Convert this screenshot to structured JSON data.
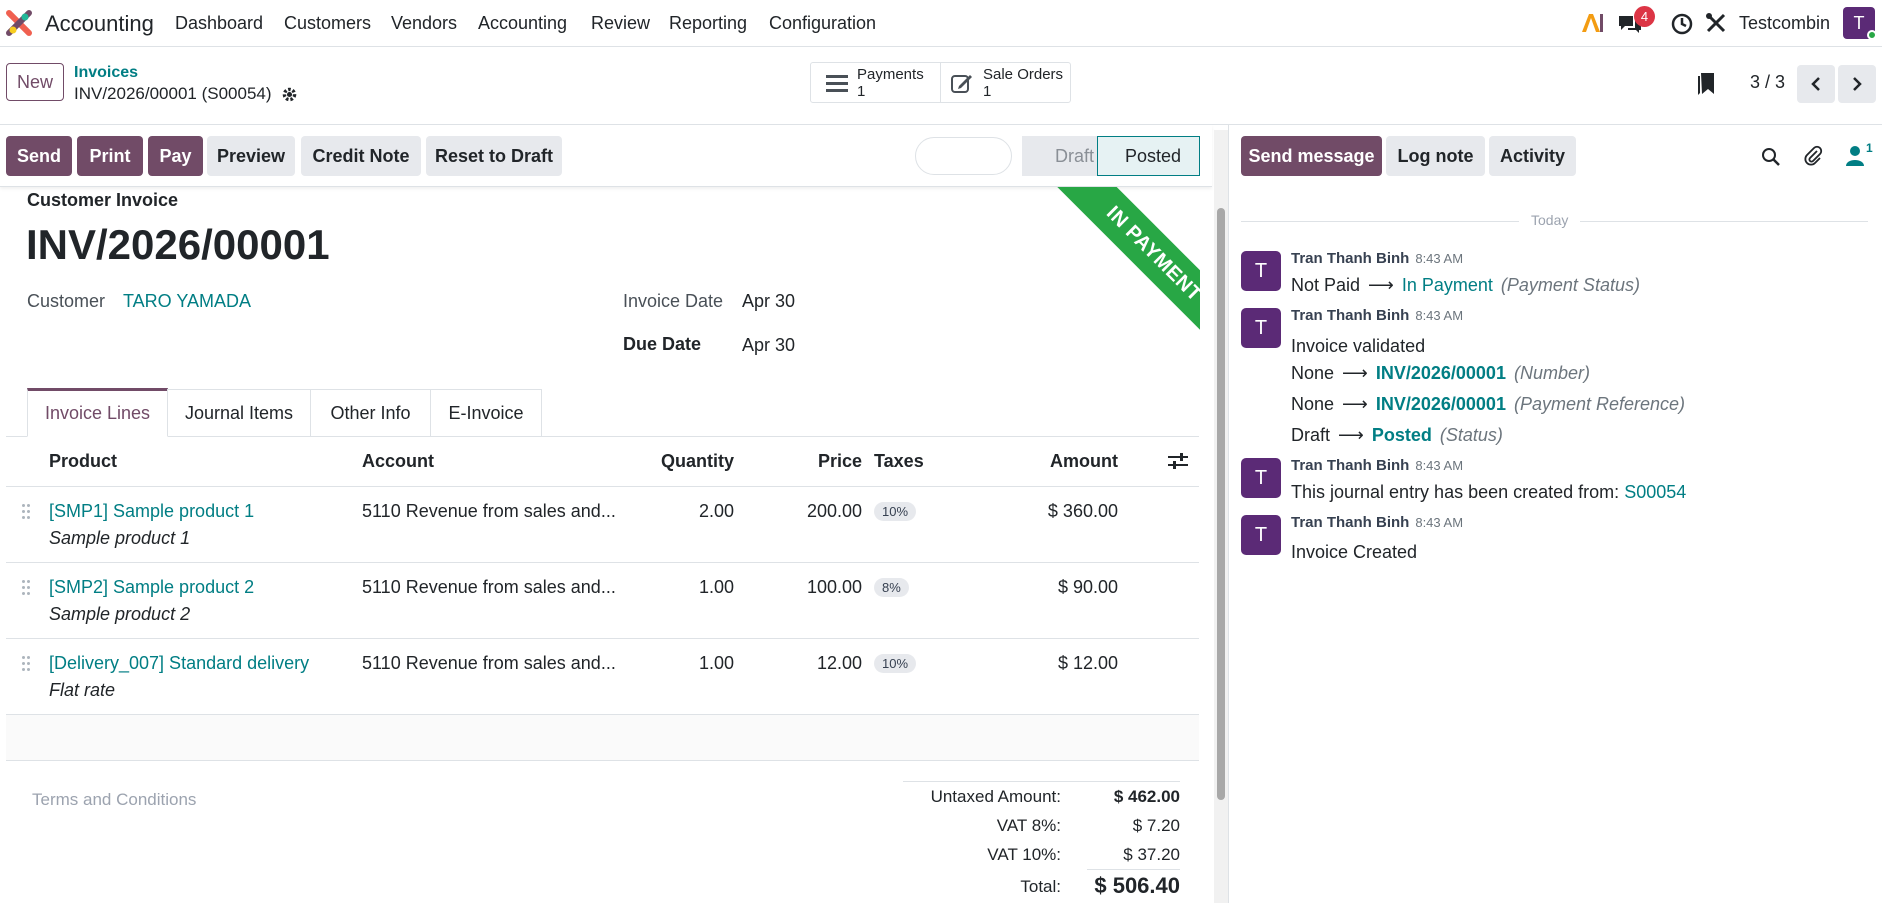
{
  "navbar": {
    "app_name": "Accounting",
    "menu": [
      "Dashboard",
      "Customers",
      "Vendors",
      "Accounting",
      "Review",
      "Reporting",
      "Configuration"
    ],
    "messages_count": "4",
    "user_name": "Testcombin",
    "user_initial": "T",
    "icons": [
      "app-logo-icon",
      "ai-icon",
      "chat-icon",
      "clock-icon",
      "tools-icon"
    ]
  },
  "control": {
    "new_label": "New",
    "breadcrumb_parent": "Invoices",
    "record_name": "INV/2026/00001 (S00054)",
    "smart_buttons": [
      {
        "label": "Payments",
        "count": "1"
      },
      {
        "label": "Sale Orders",
        "count": "1"
      }
    ],
    "pager": "3 / 3"
  },
  "actions": {
    "send": "Send",
    "print": "Print",
    "pay": "Pay",
    "preview": "Preview",
    "credit_note": "Credit Note",
    "reset_to_draft": "Reset to Draft",
    "status_draft": "Draft",
    "status_posted": "Posted"
  },
  "invoice": {
    "type_label": "Customer Invoice",
    "number": "INV/2026/00001",
    "ribbon": "IN PAYMENT",
    "customer_label": "Customer",
    "customer_value": "TARO YAMADA",
    "invoice_date_label": "Invoice Date",
    "invoice_date_value": "Apr 30",
    "due_date_label": "Due Date",
    "due_date_value": "Apr 30"
  },
  "tabs": [
    "Invoice Lines",
    "Journal Items",
    "Other Info",
    "E-Invoice"
  ],
  "table": {
    "headers": {
      "product": "Product",
      "account": "Account",
      "quantity": "Quantity",
      "price": "Price",
      "taxes": "Taxes",
      "amount": "Amount"
    },
    "rows": [
      {
        "product": "[SMP1] Sample product 1",
        "desc": "Sample product 1",
        "account": "5110 Revenue from sales and...",
        "quantity": "2.00",
        "price": "200.00",
        "tax": "10%",
        "amount": "$ 360.00"
      },
      {
        "product": "[SMP2] Sample product 2",
        "desc": "Sample product 2",
        "account": "5110 Revenue from sales and...",
        "quantity": "1.00",
        "price": "100.00",
        "tax": "8%",
        "amount": "$ 90.00"
      },
      {
        "product": "[Delivery_007] Standard delivery",
        "desc": "Flat rate",
        "account": "5110 Revenue from sales and...",
        "quantity": "1.00",
        "price": "12.00",
        "tax": "10%",
        "amount": "$ 12.00"
      }
    ]
  },
  "totals": {
    "terms_placeholder": "Terms and Conditions",
    "untaxed_label": "Untaxed Amount:",
    "untaxed_value": "$ 462.00",
    "vat8_label": "VAT 8%:",
    "vat8_value": "$ 7.20",
    "vat10_label": "VAT 10%:",
    "vat10_value": "$ 37.20",
    "total_label": "Total:",
    "total_value": "$ 506.40"
  },
  "chatter": {
    "send_message": "Send message",
    "log_note": "Log note",
    "activity": "Activity",
    "followers_count": "1",
    "date_separator": "Today",
    "messages": [
      {
        "author": "Tran Thanh Binh",
        "time": "8:43 AM",
        "initial": "T"
      },
      {
        "author": "Tran Thanh Binh",
        "time": "8:43 AM",
        "initial": "T"
      },
      {
        "author": "Tran Thanh Binh",
        "time": "8:43 AM",
        "initial": "T"
      },
      {
        "author": "Tran Thanh Binh",
        "time": "8:43 AM",
        "initial": "T"
      }
    ],
    "m1": {
      "from": "Not Paid",
      "arrow": "⟶",
      "to": "In Payment",
      "field": "(Payment Status)"
    },
    "m2": {
      "title": "Invoice validated",
      "lines": [
        {
          "from": "None",
          "arrow": "⟶",
          "to": "INV/2026/00001",
          "field": "(Number)"
        },
        {
          "from": "None",
          "arrow": "⟶",
          "to": "INV/2026/00001",
          "field": "(Payment Reference)"
        },
        {
          "from": "Draft",
          "arrow": "⟶",
          "to": "Posted",
          "field": "(Status)"
        }
      ]
    },
    "m3": {
      "text": "This journal entry has been created from:",
      "link": "S00054"
    },
    "m4": {
      "text": "Invoice Created"
    }
  },
  "colors": {
    "primary": "#714b67",
    "link": "#017e84",
    "ribbon": "#28a745",
    "badge": "#e7e9ed"
  }
}
